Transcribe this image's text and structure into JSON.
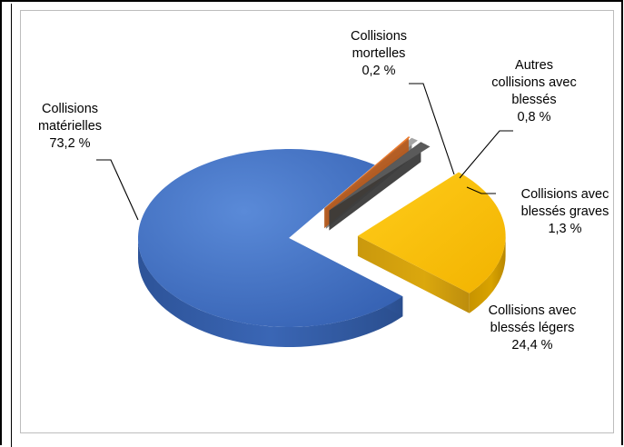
{
  "chart_data": {
    "type": "pie",
    "title": "",
    "slices": [
      {
        "name": "Collisions matérielles",
        "value": 73.2,
        "label_name": [
          "Collisions",
          "matérielles"
        ],
        "label_value": "73,2 %",
        "color": "#4472C4"
      },
      {
        "name": "Collisions mortelles",
        "value": 0.2,
        "label_name": [
          "Collisions",
          "mortelles"
        ],
        "label_value": "0,2 %",
        "color": "#ED7D31"
      },
      {
        "name": "Autres collisions avec blessés",
        "value": 0.8,
        "label_name": [
          "Autres",
          "collisions avec",
          "blessés"
        ],
        "label_value": "0,8 %",
        "color": "#A5A5A5"
      },
      {
        "name": "Collisions avec blessés graves",
        "value": 1.3,
        "label_name": [
          "Collisions avec",
          "blessés graves"
        ],
        "label_value": "1,3 %",
        "color": "#5A5A5A"
      },
      {
        "name": "Collisions avec blessés légers",
        "value": 24.4,
        "label_name": [
          "Collisions avec",
          "blessés légers"
        ],
        "label_value": "24,4 %",
        "color": "#FFC000"
      }
    ],
    "style": "3d-exploded-pie",
    "legend": "none"
  }
}
